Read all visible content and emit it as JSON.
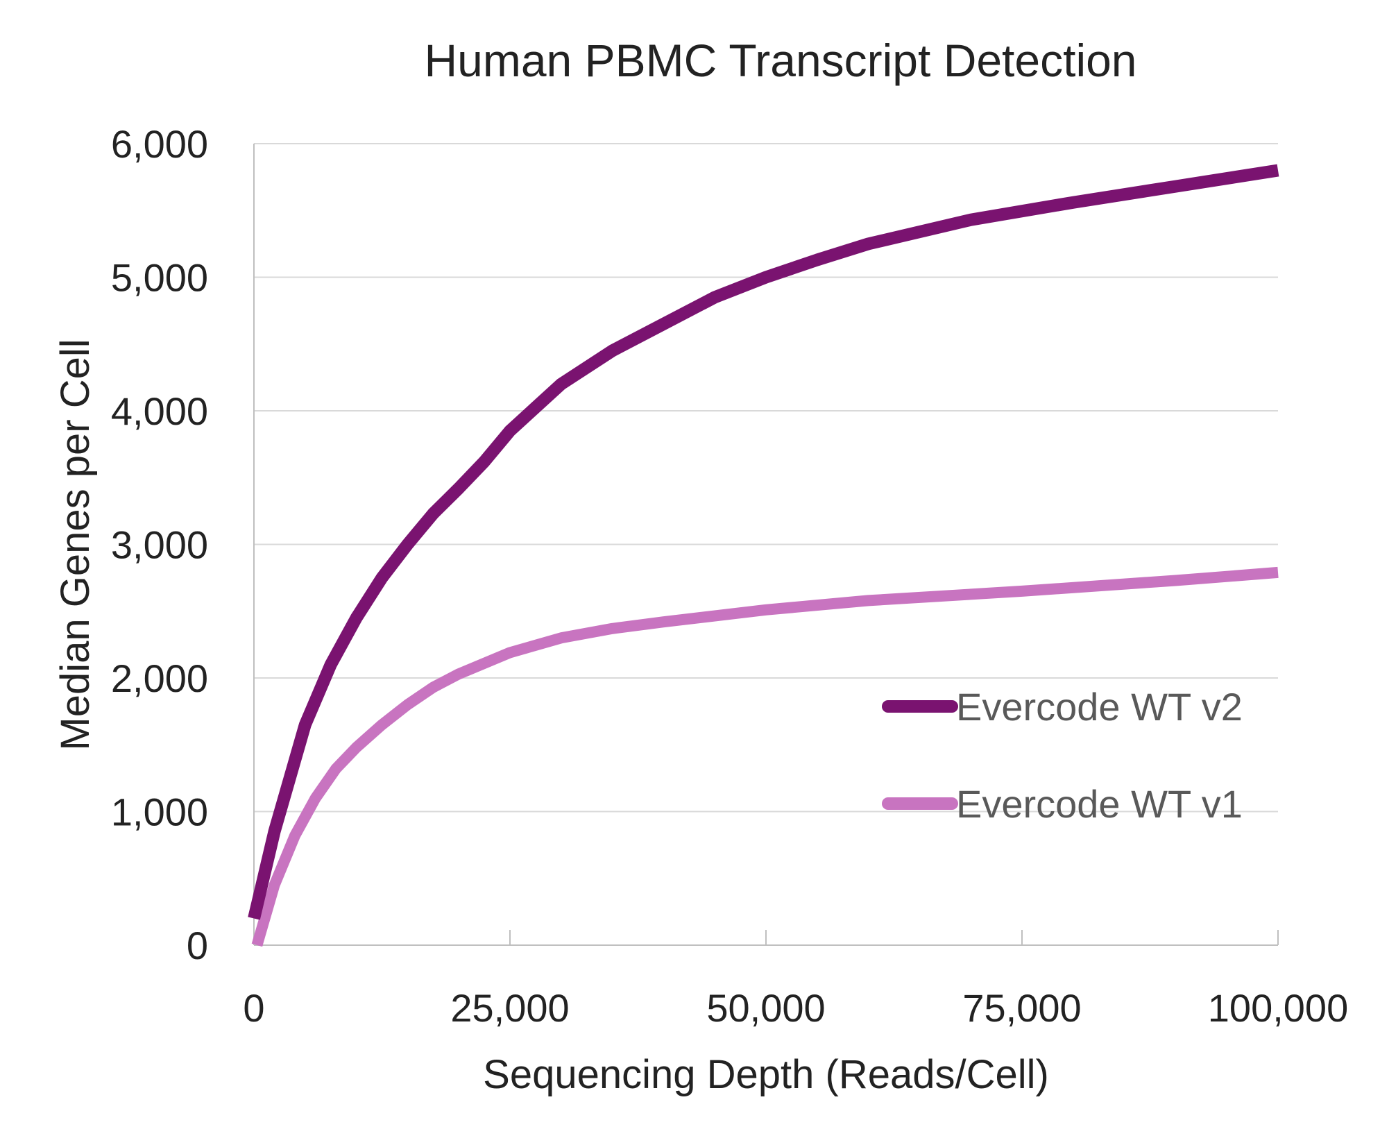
{
  "chart_data": {
    "type": "line",
    "title": "Human PBMC Transcript Detection",
    "xlabel": "Sequencing Depth (Reads/Cell)",
    "ylabel": "Median Genes per Cell",
    "xlim": [
      0,
      100000
    ],
    "ylim": [
      0,
      6000
    ],
    "x_ticks": [
      0,
      25000,
      50000,
      75000,
      100000
    ],
    "x_tick_labels": [
      "0",
      "25,000",
      "50,000",
      "75,000",
      "100,000"
    ],
    "y_ticks": [
      0,
      1000,
      2000,
      3000,
      4000,
      5000,
      6000
    ],
    "y_tick_labels": [
      "0",
      "1,000",
      "2,000",
      "3,000",
      "4,000",
      "5,000",
      "6,000"
    ],
    "grid": "horizontal",
    "legend_position": "right",
    "series": [
      {
        "name": "Evercode WT v2",
        "color": "#7a1370",
        "x": [
          0,
          2000,
          5000,
          7500,
          10000,
          12500,
          15000,
          17500,
          20000,
          22500,
          25000,
          30000,
          35000,
          40000,
          45000,
          50000,
          55000,
          60000,
          70000,
          80000,
          90000,
          100000
        ],
        "y": [
          200,
          850,
          1650,
          2100,
          2450,
          2750,
          3000,
          3230,
          3420,
          3620,
          3850,
          4200,
          4450,
          4650,
          4850,
          5000,
          5130,
          5250,
          5430,
          5560,
          5680,
          5800
        ]
      },
      {
        "name": "Evercode WT v1",
        "color": "#c874c0",
        "x": [
          300,
          2000,
          4000,
          6000,
          8000,
          10000,
          12500,
          15000,
          17500,
          20000,
          25000,
          30000,
          35000,
          40000,
          50000,
          60000,
          75000,
          90000,
          100000
        ],
        "y": [
          0,
          450,
          820,
          1100,
          1320,
          1480,
          1650,
          1800,
          1930,
          2030,
          2190,
          2300,
          2370,
          2420,
          2510,
          2580,
          2650,
          2730,
          2790
        ]
      }
    ]
  }
}
